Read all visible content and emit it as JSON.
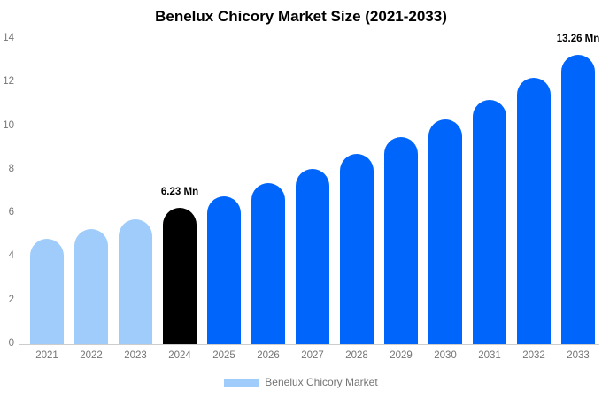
{
  "chart_data": {
    "type": "bar",
    "title": "Benelux Chicory Market Size (2021-2033)",
    "categories": [
      "2021",
      "2022",
      "2023",
      "2024",
      "2025",
      "2026",
      "2027",
      "2028",
      "2029",
      "2030",
      "2031",
      "2032",
      "2033"
    ],
    "values": [
      4.84,
      5.27,
      5.73,
      6.23,
      6.78,
      7.37,
      8.02,
      8.72,
      9.48,
      10.31,
      11.22,
      12.2,
      13.26
    ],
    "bar_colors": [
      "#9fccfa",
      "#9fccfa",
      "#9fccfa",
      "#000000",
      "#0066fb",
      "#0066fb",
      "#0066fb",
      "#0066fb",
      "#0066fb",
      "#0066fb",
      "#0066fb",
      "#0066fb",
      "#0066fb"
    ],
    "xlabel": "",
    "ylabel": "",
    "ylim": [
      0,
      14
    ],
    "yticks": [
      0,
      2,
      4,
      6,
      8,
      10,
      12,
      14
    ],
    "grid": false,
    "legend_position": "bottom",
    "annotations": [
      {
        "category": "2024",
        "label": "6.23 Mn"
      },
      {
        "category": "2033",
        "label": "13.26 Mn"
      }
    ],
    "legend": {
      "label": "Benelux Chicory Market",
      "swatch_color": "#9fccfa"
    },
    "colors": {
      "primary_blue": "#0066fb",
      "light_blue": "#9fccfa",
      "highlight_black": "#000000",
      "axis_line": "#cccccc",
      "tick_text": "#757575",
      "title_text": "#000000",
      "annotation_text": "#000000",
      "background": "#ffffff"
    }
  }
}
